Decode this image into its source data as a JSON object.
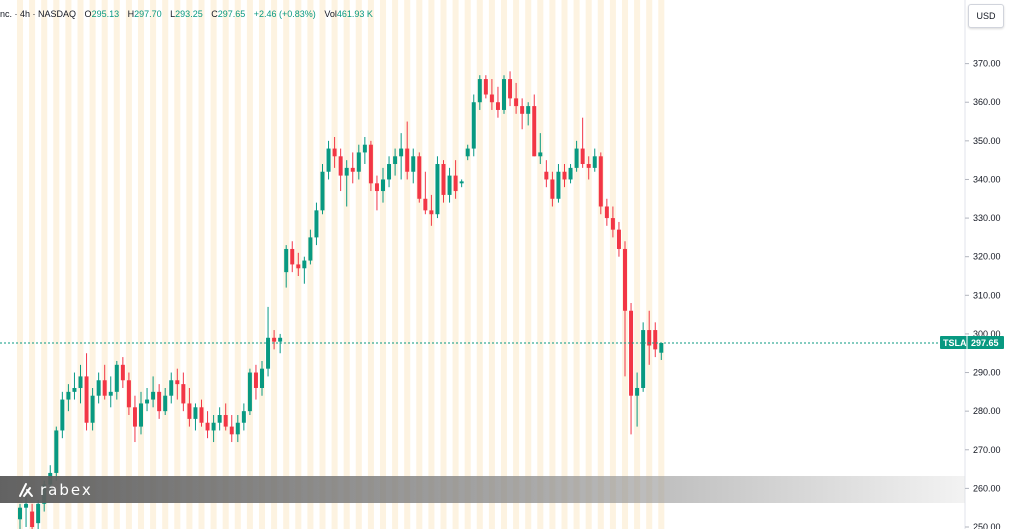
{
  "legend": {
    "title": "nc. · 4h · NASDAQ",
    "open_label": "O",
    "open": "295.13",
    "high_label": "H",
    "high": "297.70",
    "low_label": "L",
    "low": "293.25",
    "close_label": "C",
    "close": "297.65",
    "change": "+2.46 (+0.83%)",
    "vol_label": "Vol",
    "vol": "461.93 K"
  },
  "currency": "USD",
  "watermark": "rabex",
  "colors": {
    "up": "#089981",
    "down": "#f23645",
    "session_band": "#fdf3e1",
    "alt_band": "#e9effb",
    "price_line": "#089981"
  },
  "chart_data": {
    "type": "candlestick",
    "symbol": "TSLA",
    "last_price": "297.65",
    "ylim": [
      250,
      380
    ],
    "y_ticks": [
      "250.00",
      "260.00",
      "270.00",
      "280.00",
      "290.00",
      "300.00",
      "310.00",
      "320.00",
      "330.00",
      "340.00",
      "350.00",
      "360.00",
      "370.00"
    ],
    "candles": [
      {
        "o": 252,
        "h": 256,
        "l": 249,
        "c": 255
      },
      {
        "o": 255,
        "h": 259,
        "l": 250,
        "c": 256
      },
      {
        "o": 254,
        "h": 256,
        "l": 249,
        "c": 250
      },
      {
        "o": 251,
        "h": 257,
        "l": 249,
        "c": 256
      },
      {
        "o": 256,
        "h": 262,
        "l": 254,
        "c": 261
      },
      {
        "o": 261,
        "h": 266,
        "l": 258,
        "c": 264
      },
      {
        "o": 264,
        "h": 276,
        "l": 262,
        "c": 275
      },
      {
        "o": 275,
        "h": 285,
        "l": 273,
        "c": 283
      },
      {
        "o": 283,
        "h": 287,
        "l": 280,
        "c": 285
      },
      {
        "o": 285,
        "h": 290,
        "l": 283,
        "c": 286
      },
      {
        "o": 286,
        "h": 292,
        "l": 282,
        "c": 289
      },
      {
        "o": 289,
        "h": 295,
        "l": 275,
        "c": 277
      },
      {
        "o": 277,
        "h": 286,
        "l": 275,
        "c": 284
      },
      {
        "o": 284,
        "h": 290,
        "l": 282,
        "c": 288
      },
      {
        "o": 288,
        "h": 292,
        "l": 283,
        "c": 284
      },
      {
        "o": 284,
        "h": 289,
        "l": 281,
        "c": 285
      },
      {
        "o": 285,
        "h": 293,
        "l": 283,
        "c": 292
      },
      {
        "o": 292,
        "h": 294,
        "l": 286,
        "c": 288
      },
      {
        "o": 288,
        "h": 290,
        "l": 279,
        "c": 281
      },
      {
        "o": 281,
        "h": 284,
        "l": 272,
        "c": 276
      },
      {
        "o": 276,
        "h": 285,
        "l": 274,
        "c": 282
      },
      {
        "o": 282,
        "h": 286,
        "l": 280,
        "c": 283
      },
      {
        "o": 283,
        "h": 289,
        "l": 281,
        "c": 285
      },
      {
        "o": 285,
        "h": 287,
        "l": 278,
        "c": 280
      },
      {
        "o": 280,
        "h": 286,
        "l": 279,
        "c": 284
      },
      {
        "o": 284,
        "h": 290,
        "l": 282,
        "c": 288
      },
      {
        "o": 288,
        "h": 291,
        "l": 283,
        "c": 287
      },
      {
        "o": 287,
        "h": 290,
        "l": 280,
        "c": 282
      },
      {
        "o": 282,
        "h": 286,
        "l": 276,
        "c": 278
      },
      {
        "o": 278,
        "h": 282,
        "l": 275,
        "c": 281
      },
      {
        "o": 281,
        "h": 283,
        "l": 276,
        "c": 277
      },
      {
        "o": 277,
        "h": 280,
        "l": 273,
        "c": 275
      },
      {
        "o": 275,
        "h": 279,
        "l": 272,
        "c": 277
      },
      {
        "o": 277,
        "h": 281,
        "l": 275,
        "c": 279
      },
      {
        "o": 279,
        "h": 282,
        "l": 275,
        "c": 276
      },
      {
        "o": 276,
        "h": 279,
        "l": 272,
        "c": 274
      },
      {
        "o": 274,
        "h": 279,
        "l": 272,
        "c": 277
      },
      {
        "o": 277,
        "h": 282,
        "l": 275,
        "c": 280
      },
      {
        "o": 280,
        "h": 291,
        "l": 279,
        "c": 290
      },
      {
        "o": 290,
        "h": 292,
        "l": 283,
        "c": 286
      },
      {
        "o": 286,
        "h": 293,
        "l": 284,
        "c": 291
      },
      {
        "o": 291,
        "h": 307,
        "l": 289,
        "c": 299
      },
      {
        "o": 299,
        "h": 301,
        "l": 296,
        "c": 298
      },
      {
        "o": 298,
        "h": 300,
        "l": 295,
        "c": 299
      },
      {
        "o": 316,
        "h": 323,
        "l": 312,
        "c": 322
      },
      {
        "o": 322,
        "h": 324,
        "l": 316,
        "c": 318
      },
      {
        "o": 318,
        "h": 321,
        "l": 315,
        "c": 317
      },
      {
        "o": 317,
        "h": 320,
        "l": 313,
        "c": 319
      },
      {
        "o": 319,
        "h": 327,
        "l": 318,
        "c": 325
      },
      {
        "o": 325,
        "h": 334,
        "l": 323,
        "c": 332
      },
      {
        "o": 332,
        "h": 344,
        "l": 331,
        "c": 342
      },
      {
        "o": 342,
        "h": 350,
        "l": 340,
        "c": 348
      },
      {
        "o": 348,
        "h": 351,
        "l": 343,
        "c": 346
      },
      {
        "o": 346,
        "h": 348,
        "l": 337,
        "c": 341
      },
      {
        "o": 341,
        "h": 345,
        "l": 333,
        "c": 343
      },
      {
        "o": 343,
        "h": 347,
        "l": 339,
        "c": 342
      },
      {
        "o": 342,
        "h": 349,
        "l": 340,
        "c": 347
      },
      {
        "o": 347,
        "h": 351,
        "l": 344,
        "c": 349
      },
      {
        "o": 349,
        "h": 350,
        "l": 337,
        "c": 339
      },
      {
        "o": 339,
        "h": 341,
        "l": 332,
        "c": 337
      },
      {
        "o": 337,
        "h": 343,
        "l": 334,
        "c": 340
      },
      {
        "o": 340,
        "h": 346,
        "l": 338,
        "c": 344
      },
      {
        "o": 344,
        "h": 348,
        "l": 341,
        "c": 346
      },
      {
        "o": 346,
        "h": 352,
        "l": 340,
        "c": 348
      },
      {
        "o": 348,
        "h": 355,
        "l": 340,
        "c": 342
      },
      {
        "o": 342,
        "h": 348,
        "l": 339,
        "c": 346
      },
      {
        "o": 346,
        "h": 347,
        "l": 334,
        "c": 335
      },
      {
        "o": 335,
        "h": 342,
        "l": 331,
        "c": 332
      },
      {
        "o": 332,
        "h": 336,
        "l": 328,
        "c": 331
      },
      {
        "o": 331,
        "h": 346,
        "l": 330,
        "c": 344
      },
      {
        "o": 344,
        "h": 345,
        "l": 334,
        "c": 336
      },
      {
        "o": 336,
        "h": 343,
        "l": 334,
        "c": 341
      },
      {
        "o": 341,
        "h": 345,
        "l": 335,
        "c": 337
      },
      {
        "o": 339,
        "h": 340,
        "l": 338,
        "c": 339.5
      },
      {
        "o": 346,
        "h": 349,
        "l": 345,
        "c": 348
      },
      {
        "o": 348,
        "h": 362,
        "l": 346,
        "c": 360
      },
      {
        "o": 360,
        "h": 367,
        "l": 358,
        "c": 366
      },
      {
        "o": 366,
        "h": 367,
        "l": 361,
        "c": 362
      },
      {
        "o": 362,
        "h": 366,
        "l": 358,
        "c": 360
      },
      {
        "o": 360,
        "h": 364,
        "l": 356,
        "c": 358
      },
      {
        "o": 358,
        "h": 367,
        "l": 357,
        "c": 366
      },
      {
        "o": 366,
        "h": 368,
        "l": 359,
        "c": 361
      },
      {
        "o": 361,
        "h": 365,
        "l": 357,
        "c": 359
      },
      {
        "o": 359,
        "h": 361,
        "l": 353,
        "c": 357
      },
      {
        "o": 357,
        "h": 360,
        "l": 354,
        "c": 359
      },
      {
        "o": 359,
        "h": 362,
        "l": 346,
        "c": 346
      },
      {
        "o": 346,
        "h": 352,
        "l": 344,
        "c": 347
      },
      {
        "o": 342,
        "h": 345,
        "l": 338,
        "c": 340
      },
      {
        "o": 340,
        "h": 342,
        "l": 333,
        "c": 335
      },
      {
        "o": 335,
        "h": 344,
        "l": 334,
        "c": 342
      },
      {
        "o": 342,
        "h": 344,
        "l": 338,
        "c": 340
      },
      {
        "o": 340,
        "h": 344,
        "l": 339,
        "c": 343
      },
      {
        "o": 343,
        "h": 350,
        "l": 342,
        "c": 348
      },
      {
        "o": 348,
        "h": 356,
        "l": 343,
        "c": 344
      },
      {
        "o": 344,
        "h": 346,
        "l": 340,
        "c": 343
      },
      {
        "o": 343,
        "h": 348,
        "l": 342,
        "c": 346
      },
      {
        "o": 346,
        "h": 347,
        "l": 331,
        "c": 333
      },
      {
        "o": 333,
        "h": 335,
        "l": 328,
        "c": 330
      },
      {
        "o": 330,
        "h": 333,
        "l": 325,
        "c": 327
      },
      {
        "o": 327,
        "h": 329,
        "l": 320,
        "c": 322
      },
      {
        "o": 322,
        "h": 324,
        "l": 289,
        "c": 306
      },
      {
        "o": 306,
        "h": 308,
        "l": 274,
        "c": 284
      },
      {
        "o": 284,
        "h": 290,
        "l": 276,
        "c": 286
      },
      {
        "o": 286,
        "h": 303,
        "l": 285,
        "c": 301
      },
      {
        "o": 301,
        "h": 306,
        "l": 292,
        "c": 297
      },
      {
        "o": 301,
        "h": 303,
        "l": 294,
        "c": 296
      },
      {
        "o": 295.13,
        "h": 297.7,
        "l": 293.25,
        "c": 297.65
      }
    ]
  }
}
